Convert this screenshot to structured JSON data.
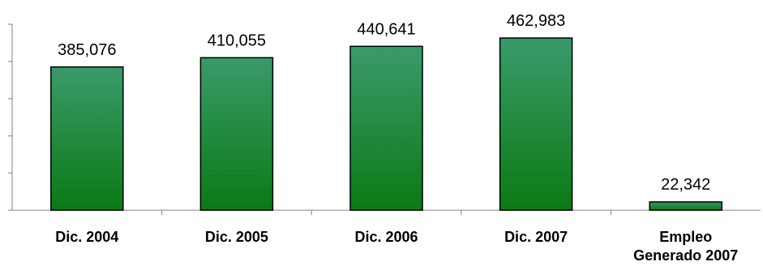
{
  "chart_data": {
    "type": "bar",
    "categories": [
      "Dic. 2004",
      "Dic. 2005",
      "Dic. 2006",
      "Dic. 2007",
      "Empleo Generado 2007"
    ],
    "category_lines": [
      [
        "Dic. 2004"
      ],
      [
        "Dic. 2005"
      ],
      [
        "Dic. 2006"
      ],
      [
        "Dic. 2007"
      ],
      [
        "Empleo",
        "Generado 2007"
      ]
    ],
    "values": [
      385076,
      410055,
      440641,
      462983,
      22342
    ],
    "value_labels": [
      "385,076",
      "410,055",
      "440,641",
      "462,983",
      "22,342"
    ],
    "title": "",
    "xlabel": "",
    "ylabel": "",
    "ylim": [
      0,
      500000
    ],
    "y_tick_step": 100000,
    "y_tick_labels_shown": false,
    "grid": false,
    "legend": "none",
    "bar_color_top": "#3a9a6a",
    "bar_color_bottom": "#0a7a14",
    "bar_border_color": "#000000"
  }
}
